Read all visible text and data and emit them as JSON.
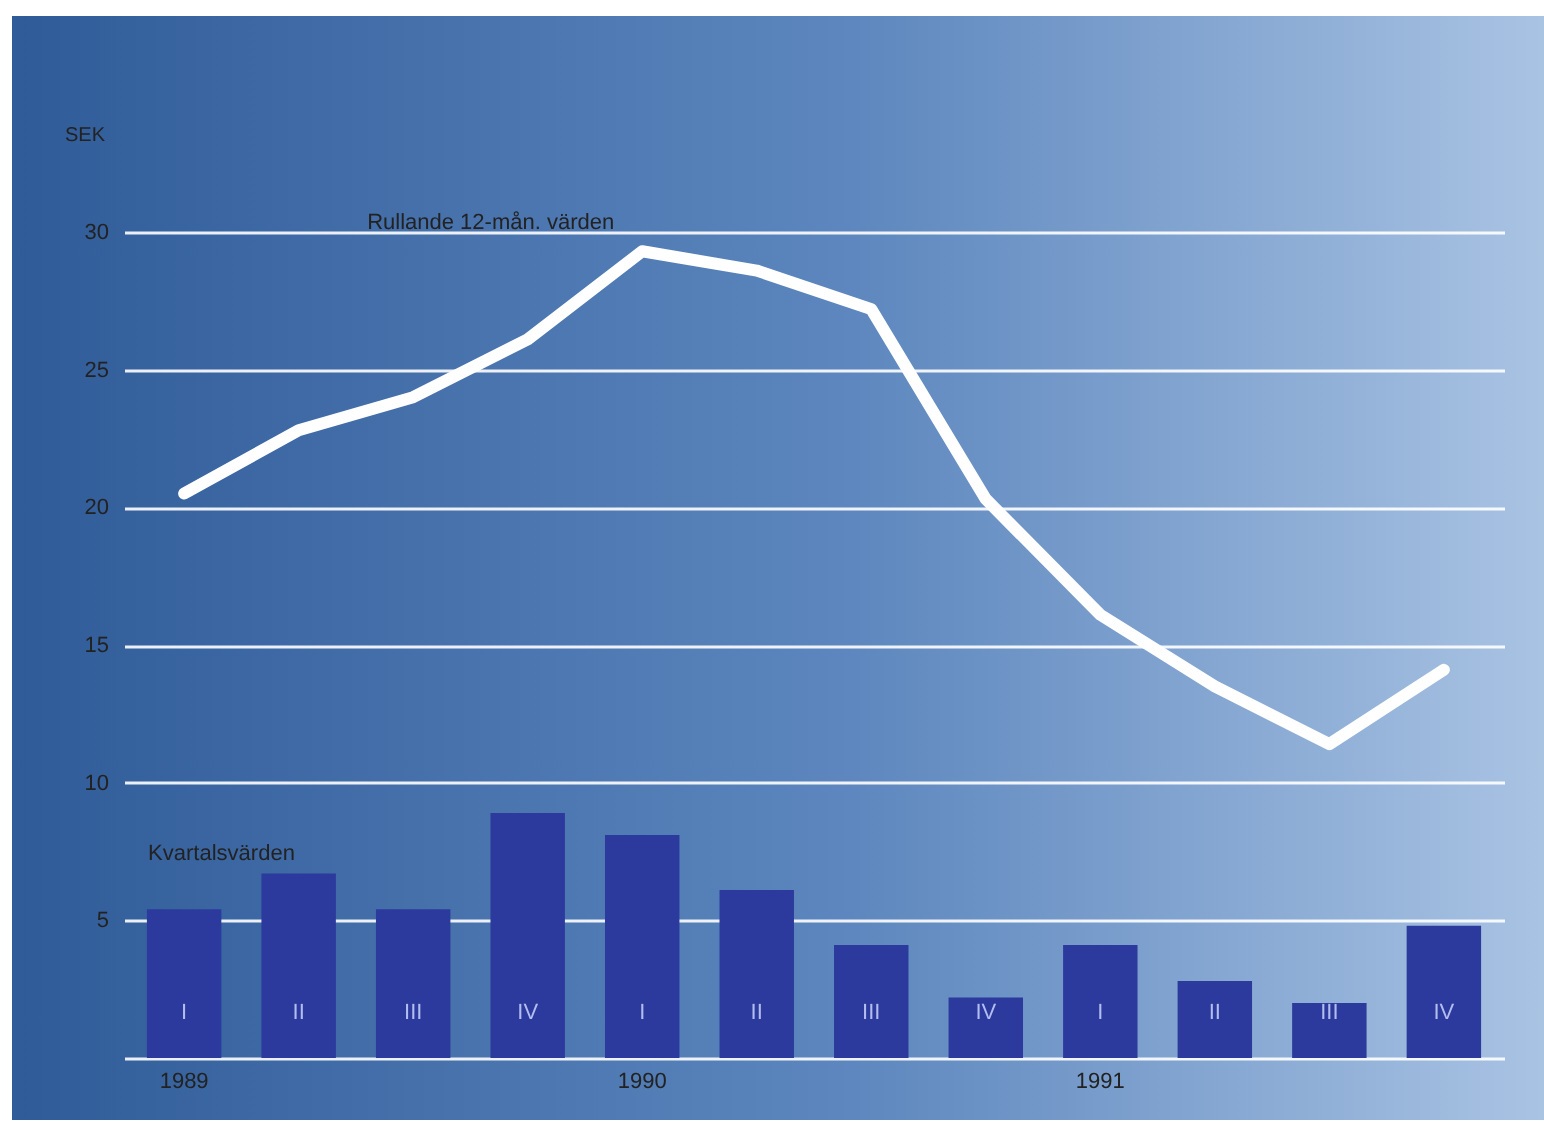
{
  "chart_data": {
    "type": "bar",
    "ylabel": "SEK",
    "categories": [
      "I",
      "II",
      "III",
      "IV",
      "I",
      "II",
      "III",
      "IV",
      "I",
      "II",
      "III",
      "IV"
    ],
    "series": [
      {
        "name": "Kvartalsvärden",
        "color": "#2b3a9c",
        "values": [
          5.4,
          6.7,
          5.4,
          8.9,
          8.1,
          6.1,
          4.1,
          2.2,
          4.1,
          2.8,
          2.0,
          4.8
        ]
      },
      {
        "name": "Rullande 12-mån. värden",
        "type": "line",
        "color": "#ffffff",
        "values": [
          20.5,
          22.8,
          24.0,
          26.1,
          29.3,
          28.6,
          27.2,
          20.3,
          16.1,
          13.5,
          11.4,
          14.1
        ]
      }
    ],
    "ylim": [
      0,
      30
    ],
    "yticks": [
      {
        "value": 0,
        "label": null
      },
      5,
      10,
      15,
      20,
      25,
      30
    ],
    "grid": "y",
    "annotations": [
      "1989",
      "1990",
      "1991"
    ]
  }
}
